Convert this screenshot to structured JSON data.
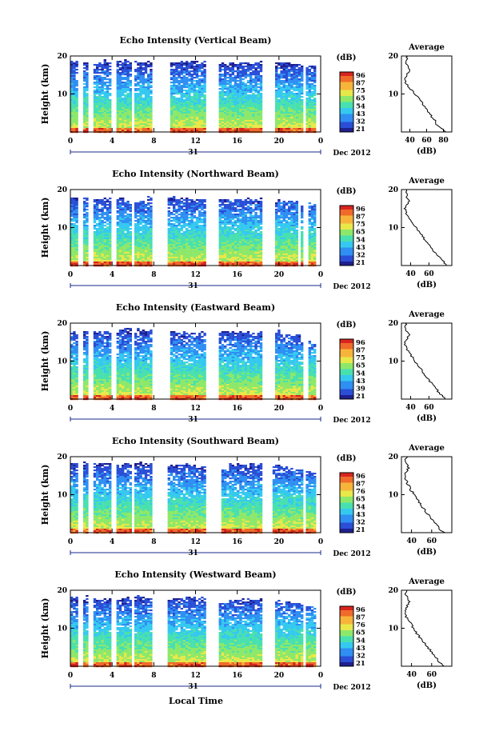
{
  "figure": {
    "bottom_xlabel": "Local Time",
    "cbar_unit": "(dB)",
    "avg_title": "Average",
    "avg_xlabel": "(dB)",
    "ylabel": "Height (km)",
    "date_label": "Dec 2012",
    "day_label": "31"
  },
  "colormap": [
    "#1f1f8f",
    "#2a4fd6",
    "#2f8ff2",
    "#35c9f0",
    "#49e0b0",
    "#8de86a",
    "#e8e84a",
    "#f7b43a",
    "#f06a2a",
    "#d8241e"
  ],
  "chart_data": [
    {
      "type": "heatmap",
      "title": "Echo Intensity (Vertical Beam)",
      "xlabel": "Local Time",
      "ylabel": "Height (km)",
      "x_ticks": [
        "0",
        "4",
        "8",
        "12",
        "16",
        "20",
        "0"
      ],
      "y_ticks": [
        "20",
        "10"
      ],
      "xlim": [
        0,
        24
      ],
      "ylim": [
        0,
        20
      ],
      "cbar_ticks": [
        "96",
        "87",
        "75",
        "65",
        "54",
        "43",
        "32",
        "21"
      ],
      "avg": {
        "xlim": [
          30,
          90
        ],
        "x_ticks": [
          "40",
          "60",
          "80"
        ],
        "y_ticks": [
          "20",
          "10"
        ],
        "profile_x": [
          83,
          78,
          72,
          70,
          66,
          63,
          60,
          57,
          54,
          50,
          46,
          42,
          38,
          35,
          34,
          36,
          40,
          38,
          35,
          36,
          37
        ]
      },
      "data_top": [
        18.8,
        18.9,
        18.2,
        18.9,
        18.8,
        19.0,
        18.6,
        18.8,
        19.0,
        18.5,
        18.9,
        19.0,
        18.7,
        18.9,
        18.2,
        18.8,
        18.6,
        18.4,
        18.8,
        18.6,
        18.4,
        18.2,
        18.0,
        17.8
      ],
      "gaps": [
        [
          0.7,
          1.1
        ],
        [
          1.7,
          2.0
        ],
        [
          3.8,
          4.2
        ],
        [
          5.7,
          5.9
        ],
        [
          7.7,
          9.4
        ],
        [
          13.0,
          14.0
        ],
        [
          18.2,
          19.4
        ],
        [
          22.3,
          22.5
        ],
        [
          23.4,
          24
        ]
      ]
    },
    {
      "type": "heatmap",
      "title": "Echo Intensity (Northward Beam)",
      "xlabel": "Local Time",
      "ylabel": "Height (km)",
      "x_ticks": [
        "0",
        "4",
        "8",
        "12",
        "16",
        "20",
        "0"
      ],
      "y_ticks": [
        "20",
        "10"
      ],
      "xlim": [
        0,
        24
      ],
      "ylim": [
        0,
        20
      ],
      "cbar_ticks": [
        "96",
        "87",
        "75",
        "65",
        "54",
        "43",
        "32",
        "21"
      ],
      "avg": {
        "xlim": [
          30,
          85
        ],
        "x_ticks": [
          "40",
          "60"
        ],
        "y_ticks": [
          "20",
          "10"
        ],
        "profile_x": [
          80,
          76,
          72,
          68,
          64,
          61,
          58,
          55,
          52,
          49,
          46,
          43,
          40,
          37,
          35,
          34,
          36,
          38,
          35,
          36,
          36
        ]
      },
      "data_top": [
        18.0,
        18.2,
        17.8,
        18.0,
        18.1,
        17.6,
        17.2,
        18.4,
        17.0,
        18.2,
        17.9,
        18.0,
        17.8,
        16.8,
        17.6,
        18.0,
        17.9,
        17.6,
        18.0,
        17.4,
        17.2,
        17.0,
        17.0,
        16.4
      ],
      "gaps": [
        [
          0.7,
          1.1
        ],
        [
          1.7,
          2.0
        ],
        [
          3.8,
          4.2
        ],
        [
          5.7,
          5.9
        ],
        [
          7.7,
          9.1
        ],
        [
          13.0,
          14.0
        ],
        [
          18.2,
          19.4
        ],
        [
          21.7,
          22.0
        ],
        [
          22.3,
          22.8
        ],
        [
          23.4,
          24
        ]
      ]
    },
    {
      "type": "heatmap",
      "title": "Echo Intensity (Eastward Beam)",
      "xlabel": "Local Time",
      "ylabel": "Height (km)",
      "x_ticks": [
        "0",
        "4",
        "8",
        "12",
        "16",
        "20",
        "0"
      ],
      "y_ticks": [
        "20",
        "10"
      ],
      "xlim": [
        0,
        24
      ],
      "ylim": [
        0,
        20
      ],
      "cbar_ticks": [
        "96",
        "87",
        "75",
        "65",
        "54",
        "43",
        "39",
        "21"
      ],
      "avg": {
        "xlim": [
          30,
          85
        ],
        "x_ticks": [
          "40",
          "60"
        ],
        "y_ticks": [
          "20",
          "10"
        ],
        "profile_x": [
          78,
          74,
          70,
          67,
          63,
          60,
          57,
          54,
          51,
          48,
          45,
          42,
          39,
          36,
          34,
          33,
          36,
          38,
          35,
          34,
          35
        ]
      },
      "data_top": [
        18.0,
        18.2,
        17.8,
        18.0,
        18.5,
        18.8,
        18.6,
        18.4,
        17.6,
        18.0,
        17.9,
        17.6,
        17.8,
        18.4,
        18.2,
        18.0,
        17.9,
        17.6,
        18.2,
        18.4,
        17.2,
        17.0,
        16.0,
        15.0
      ],
      "gaps": [
        [
          0.7,
          1.1
        ],
        [
          1.7,
          2.0
        ],
        [
          3.8,
          4.2
        ],
        [
          5.7,
          5.9
        ],
        [
          7.7,
          9.4
        ],
        [
          13.0,
          14.0
        ],
        [
          18.2,
          19.4
        ],
        [
          22.3,
          22.6
        ],
        [
          23.4,
          24
        ]
      ]
    },
    {
      "type": "heatmap",
      "title": "Echo Intensity (Southward Beam)",
      "xlabel": "Local Time",
      "ylabel": "Height (km)",
      "x_ticks": [
        "0",
        "4",
        "8",
        "12",
        "16",
        "20",
        "0"
      ],
      "y_ticks": [
        "20",
        "10"
      ],
      "xlim": [
        0,
        24
      ],
      "ylim": [
        0,
        20
      ],
      "cbar_ticks": [
        "96",
        "87",
        "76",
        "65",
        "54",
        "43",
        "32",
        "21"
      ],
      "avg": {
        "xlim": [
          30,
          80
        ],
        "x_ticks": [
          "40",
          "60"
        ],
        "y_ticks": [
          "20",
          "10"
        ],
        "profile_x": [
          72,
          68,
          65,
          62,
          59,
          56,
          53,
          50,
          48,
          45,
          43,
          40,
          38,
          36,
          34,
          33,
          35,
          37,
          35,
          34,
          35
        ]
      },
      "data_top": [
        18.6,
        18.8,
        18.6,
        18.2,
        18.0,
        18.4,
        18.6,
        18.2,
        17.8,
        18.0,
        18.2,
        18.4,
        17.6,
        17.0,
        16.6,
        18.2,
        18.4,
        18.2,
        18.4,
        18.0,
        17.6,
        17.0,
        16.6,
        16.0
      ],
      "gaps": [
        [
          0.7,
          1.1
        ],
        [
          1.7,
          2.0
        ],
        [
          3.8,
          4.2
        ],
        [
          5.7,
          5.9
        ],
        [
          7.7,
          9.1
        ],
        [
          13.0,
          14.3
        ],
        [
          18.2,
          19.2
        ],
        [
          22.3,
          22.5
        ],
        [
          23.4,
          24
        ]
      ]
    },
    {
      "type": "heatmap",
      "title": "Echo Intensity (Westward Beam)",
      "xlabel": "Local Time",
      "ylabel": "Height (km)",
      "x_ticks": [
        "0",
        "4",
        "8",
        "12",
        "16",
        "20",
        "0"
      ],
      "y_ticks": [
        "20",
        "10"
      ],
      "xlim": [
        0,
        24
      ],
      "ylim": [
        0,
        20
      ],
      "cbar_ticks": [
        "96",
        "87",
        "76",
        "65",
        "54",
        "43",
        "32",
        "21"
      ],
      "avg": {
        "xlim": [
          30,
          80
        ],
        "x_ticks": [
          "40",
          "60"
        ],
        "y_ticks": [
          "20",
          "10"
        ],
        "profile_x": [
          72,
          68,
          65,
          62,
          59,
          56,
          53,
          50,
          47,
          44,
          42,
          40,
          37,
          35,
          33,
          34,
          36,
          38,
          36,
          34,
          35
        ]
      },
      "data_top": [
        18.4,
        18.6,
        18.0,
        18.2,
        17.8,
        18.4,
        18.6,
        18.2,
        17.6,
        17.8,
        18.0,
        18.4,
        18.2,
        17.4,
        17.0,
        17.6,
        18.0,
        17.4,
        18.0,
        17.6,
        17.2,
        16.8,
        16.4,
        16.0
      ],
      "gaps": [
        [
          0.7,
          1.1
        ],
        [
          1.7,
          2.0
        ],
        [
          3.8,
          4.2
        ],
        [
          5.7,
          5.9
        ],
        [
          7.7,
          9.1
        ],
        [
          13.0,
          14.1
        ],
        [
          18.2,
          19.4
        ],
        [
          22.3,
          22.5
        ],
        [
          23.4,
          24
        ]
      ]
    }
  ]
}
